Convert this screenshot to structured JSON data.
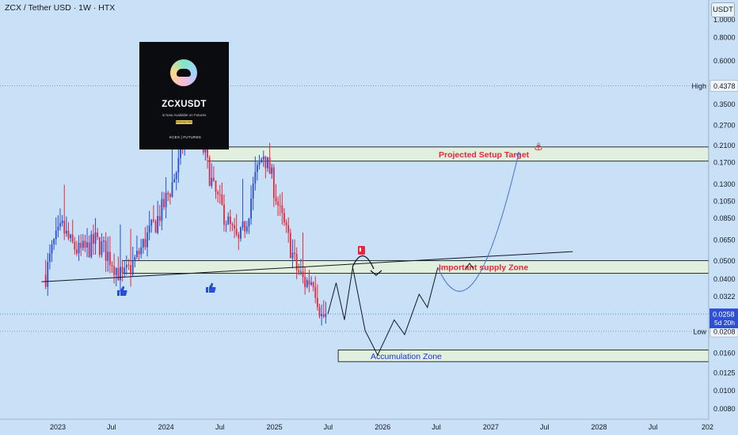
{
  "header": {
    "title": "ZCX / Tether USD · 1W · HTX",
    "currency_button": "USDT"
  },
  "promo": {
    "name": "ZCXUSDT",
    "subtitle": "is Now Available on Futures",
    "button": "Exchange Now",
    "footer": "KCEX | FUTURES"
  },
  "colors": {
    "background": "#c8e1f7",
    "candle_up": "#2a4dd6",
    "candle_down": "#e8273a",
    "zone_fill": "#e3f0dc",
    "zone_label": "#e8273a",
    "accumulation_label": "#1d2fd1",
    "projection_curve": "#4d6fd0",
    "axis_badge": "#2f4fd6"
  },
  "chart_data": {
    "type": "candlestick",
    "x_axis": {
      "labels": [
        "2023",
        "Jul",
        "2024",
        "Jul",
        "2025",
        "Jul",
        "2026",
        "Jul",
        "2027",
        "Jul",
        "2028",
        "Jul",
        "202"
      ],
      "dates": [
        "2023-01-01",
        "2023-07-01",
        "2024-01-01",
        "2024-07-01",
        "2025-01-01",
        "2025-07-01",
        "2026-01-01",
        "2026-07-01",
        "2027-01-01",
        "2027-07-01",
        "2028-01-01",
        "2028-07-01",
        "2029-01-01"
      ],
      "range": [
        "2022-06-20",
        "2029-01-05"
      ]
    },
    "y_axis": {
      "scale": "log",
      "range": [
        0.007,
        1.27
      ],
      "ticks": [
        "1.0000",
        "0.8000",
        "0.6000",
        "0.4378",
        "0.3500",
        "0.2700",
        "0.2100",
        "0.1700",
        "0.1300",
        "0.1050",
        "0.0850",
        "0.0650",
        "0.0500",
        "0.0400",
        "0.0322",
        "0.0258",
        "0.0208",
        "0.0160",
        "0.0125",
        "0.0100",
        "0.0080"
      ],
      "tick_values": [
        1.0,
        0.8,
        0.6,
        0.4378,
        0.35,
        0.27,
        0.21,
        0.17,
        0.13,
        0.105,
        0.085,
        0.065,
        0.05,
        0.04,
        0.0322,
        0.0258,
        0.0208,
        0.016,
        0.0125,
        0.01,
        0.008
      ],
      "current_price": {
        "value": 0.0258,
        "label": "0.0258",
        "countdown": "5d 20h"
      },
      "high": {
        "value": 0.4378,
        "label": "High",
        "price": "0.4378"
      },
      "low": {
        "value": 0.0208,
        "label": "Low",
        "price": "0.0208"
      }
    },
    "price_path": [
      [
        "2022-11-21",
        0.042
      ],
      [
        "2022-12-19",
        0.062
      ],
      [
        "2023-01-16",
        0.075
      ],
      [
        "2023-02-13",
        0.062
      ],
      [
        "2023-03-13",
        0.056
      ],
      [
        "2023-04-10",
        0.058
      ],
      [
        "2023-05-08",
        0.064
      ],
      [
        "2023-06-05",
        0.058
      ],
      [
        "2023-07-03",
        0.05
      ],
      [
        "2023-08-07",
        0.04
      ],
      [
        "2023-09-04",
        0.046
      ],
      [
        "2023-10-02",
        0.055
      ],
      [
        "2023-10-30",
        0.068
      ],
      [
        "2023-11-27",
        0.08
      ],
      [
        "2023-12-25",
        0.1
      ],
      [
        "2024-01-22",
        0.13
      ],
      [
        "2024-02-19",
        0.18
      ],
      [
        "2024-03-18",
        0.34
      ],
      [
        "2024-04-15",
        0.26
      ],
      [
        "2024-05-13",
        0.18
      ],
      [
        "2024-06-10",
        0.12
      ],
      [
        "2024-07-08",
        0.095
      ],
      [
        "2024-08-05",
        0.075
      ],
      [
        "2024-09-02",
        0.062
      ],
      [
        "2024-09-30",
        0.085
      ],
      [
        "2024-10-28",
        0.14
      ],
      [
        "2024-11-25",
        0.19
      ],
      [
        "2024-12-23",
        0.14
      ],
      [
        "2025-01-20",
        0.09
      ],
      [
        "2025-02-17",
        0.065
      ],
      [
        "2025-03-17",
        0.045
      ],
      [
        "2025-04-14",
        0.038
      ],
      [
        "2025-05-12",
        0.04
      ],
      [
        "2025-06-09",
        0.025
      ]
    ],
    "zones": [
      {
        "name": "Projected Setup Target",
        "from_date": "2024-05-20",
        "to_date": "2029-01-05",
        "upper": 0.205,
        "lower": 0.172
      },
      {
        "name": "Important supply Zone",
        "from_date": "2023-08-07",
        "to_date": "2029-01-05",
        "upper": 0.05,
        "lower": 0.0428
      },
      {
        "name": "Accumulation Zone",
        "from_date": "2025-08-04",
        "to_date": "2029-01-05",
        "upper": 0.0165,
        "lower": 0.0143
      }
    ],
    "trendline": {
      "start": [
        "2022-11-07",
        0.0385
      ],
      "end": [
        "2027-10-04",
        0.056
      ]
    },
    "projection_zigzag": [
      [
        "2025-06-30",
        0.0258
      ],
      [
        "2025-07-28",
        0.038
      ],
      [
        "2025-08-25",
        0.024
      ],
      [
        "2025-09-22",
        0.046
      ],
      [
        "2025-11-03",
        0.021
      ],
      [
        "2025-12-15",
        0.0155
      ],
      [
        "2026-02-09",
        0.024
      ],
      [
        "2026-03-16",
        0.02
      ],
      [
        "2026-05-04",
        0.033
      ],
      [
        "2026-06-01",
        0.028
      ],
      [
        "2026-07-06",
        0.046
      ]
    ],
    "projection_curve": [
      [
        "2026-07-06",
        0.046
      ],
      [
        "2026-09-14",
        0.026
      ],
      [
        "2026-12-07",
        0.03
      ],
      [
        "2027-04-05",
        0.19
      ]
    ]
  }
}
